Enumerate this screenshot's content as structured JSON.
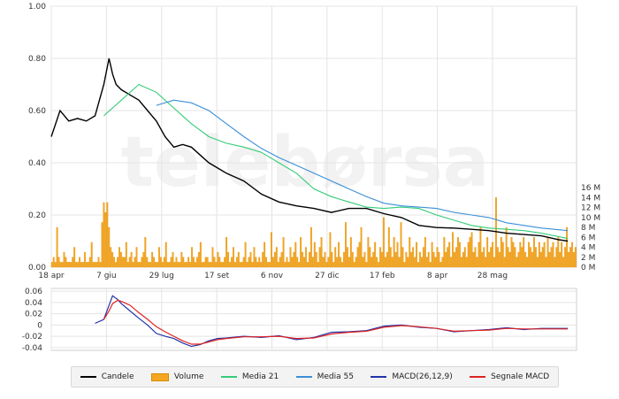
{
  "watermark": "telebørsa",
  "chart_data": [
    {
      "type": "line",
      "panel": "price",
      "x_ticks": [
        "18 apr",
        "7 giu",
        "29 lug",
        "17 set",
        "6 nov",
        "27 dic",
        "17 feb",
        "8 apr",
        "28 mag"
      ],
      "y_ticks": [
        "0.00",
        "0.20",
        "0.40",
        "0.60",
        "0.80",
        "1.00"
      ],
      "ylim": [
        0,
        1.0
      ],
      "y2_ticks": [
        "0 M",
        "2 M",
        "4 M",
        "6 M",
        "8 M",
        "10 M",
        "12 M",
        "14 M",
        "16 M"
      ],
      "y2lim": [
        0,
        16
      ],
      "grid": true,
      "series": [
        {
          "name": "Candele",
          "color": "#000000",
          "kind": "close",
          "x": [
            0,
            5,
            10,
            15,
            20,
            25,
            30,
            33,
            35,
            37,
            40,
            45,
            50,
            55,
            60,
            65,
            70,
            75,
            80,
            85,
            90,
            95,
            100,
            110,
            120,
            130,
            140,
            150,
            160,
            170,
            180,
            190,
            200,
            210,
            220,
            230,
            240,
            250,
            260,
            270,
            280,
            290,
            295
          ],
          "values": [
            0.5,
            0.6,
            0.56,
            0.57,
            0.56,
            0.58,
            0.7,
            0.8,
            0.74,
            0.7,
            0.68,
            0.66,
            0.64,
            0.6,
            0.56,
            0.5,
            0.46,
            0.47,
            0.46,
            0.43,
            0.4,
            0.38,
            0.36,
            0.33,
            0.28,
            0.25,
            0.235,
            0.225,
            0.21,
            0.225,
            0.225,
            0.205,
            0.19,
            0.16,
            0.152,
            0.15,
            0.145,
            0.14,
            0.13,
            0.125,
            0.12,
            0.105,
            0.1
          ]
        },
        {
          "name": "Media 21",
          "color": "#33cc77",
          "x": [
            30,
            40,
            50,
            60,
            70,
            80,
            90,
            100,
            110,
            120,
            130,
            140,
            150,
            160,
            170,
            180,
            190,
            200,
            210,
            220,
            230,
            240,
            250,
            260,
            270,
            280,
            295
          ],
          "values": [
            0.58,
            0.64,
            0.7,
            0.67,
            0.61,
            0.55,
            0.5,
            0.475,
            0.46,
            0.44,
            0.4,
            0.36,
            0.3,
            0.27,
            0.25,
            0.23,
            0.225,
            0.23,
            0.225,
            0.2,
            0.18,
            0.16,
            0.15,
            0.145,
            0.14,
            0.13,
            0.11
          ]
        },
        {
          "name": "Media 55",
          "color": "#3a8fd8",
          "x": [
            60,
            70,
            80,
            90,
            100,
            110,
            120,
            130,
            140,
            150,
            160,
            170,
            180,
            190,
            200,
            210,
            220,
            230,
            240,
            250,
            260,
            270,
            280,
            295
          ],
          "values": [
            0.62,
            0.64,
            0.63,
            0.6,
            0.55,
            0.5,
            0.455,
            0.42,
            0.39,
            0.36,
            0.33,
            0.3,
            0.27,
            0.245,
            0.235,
            0.23,
            0.225,
            0.21,
            0.2,
            0.19,
            0.17,
            0.16,
            0.15,
            0.14
          ]
        }
      ]
    },
    {
      "type": "bar",
      "panel": "volume",
      "series_name": "Volume",
      "units": "M",
      "color": "#f5a623",
      "values": [
        1,
        2,
        1,
        8,
        2,
        1,
        1,
        3,
        2,
        1,
        1,
        1,
        2,
        4,
        1,
        1,
        2,
        1,
        1,
        3,
        1,
        1,
        2,
        5,
        1,
        1,
        1,
        2,
        1,
        9,
        13,
        11,
        13,
        8,
        4,
        3,
        2,
        1,
        2,
        4,
        3,
        2,
        2,
        5,
        1,
        2,
        3,
        1,
        2,
        4,
        1,
        1,
        2,
        3,
        6,
        2,
        1,
        1,
        3,
        2,
        1,
        1,
        4,
        2,
        1,
        2,
        5,
        1,
        1,
        2,
        3,
        1,
        2,
        1,
        1,
        3,
        2,
        1,
        1,
        2,
        1,
        4,
        2,
        1,
        2,
        3,
        5,
        1,
        1,
        2,
        2,
        1,
        1,
        4,
        2,
        1,
        3,
        2,
        1,
        1,
        2,
        6,
        3,
        1,
        2,
        4,
        1,
        2,
        3,
        1,
        1,
        2,
        5,
        1,
        2,
        3,
        1,
        4,
        2,
        1,
        2,
        1,
        3,
        5,
        2,
        1,
        1,
        7,
        2,
        3,
        4,
        1,
        2,
        3,
        6,
        1,
        2,
        1,
        4,
        2,
        3,
        5,
        2,
        1,
        6,
        3,
        2,
        4,
        1,
        3,
        8,
        2,
        5,
        3,
        1,
        4,
        6,
        2,
        3,
        1,
        2,
        7,
        3,
        1,
        4,
        2,
        5,
        2,
        1,
        3,
        9,
        4,
        2,
        6,
        3,
        1,
        2,
        4,
        5,
        8,
        2,
        3,
        1,
        6,
        4,
        2,
        3,
        5,
        2,
        1,
        4,
        3,
        10,
        2,
        3,
        8,
        4,
        2,
        6,
        3,
        5,
        2,
        9,
        4,
        1,
        3,
        2,
        6,
        3,
        4,
        2,
        5,
        1,
        3,
        2,
        4,
        6,
        2,
        3,
        1,
        5,
        3,
        2,
        4,
        3,
        1,
        2,
        6,
        3,
        4,
        5,
        2,
        7,
        3,
        4,
        6,
        5,
        2,
        3,
        4,
        2,
        5,
        6,
        7,
        3,
        4,
        2,
        5,
        8,
        3,
        4,
        2,
        6,
        3,
        4,
        5,
        2,
        14,
        4,
        3,
        6,
        5,
        2,
        8,
        4,
        3,
        6,
        5,
        4,
        2,
        3,
        5,
        4,
        6,
        3,
        2,
        5,
        4,
        3,
        6,
        4,
        2,
        5,
        3,
        4,
        5,
        2,
        6,
        3,
        4,
        5,
        2,
        4,
        6,
        3,
        5,
        2,
        4,
        8,
        3,
        4,
        5,
        3,
        4
      ]
    },
    {
      "type": "line",
      "panel": "macd",
      "y_ticks": [
        "0.06",
        "0.04",
        "0.02",
        "0",
        "-0.02",
        "-0.04"
      ],
      "ylim": [
        -0.045,
        0.065
      ],
      "grid": true,
      "series": [
        {
          "name": "MACD(26,12,9)",
          "color": "#2233aa",
          "x": [
            25,
            30,
            33,
            35,
            38,
            40,
            45,
            50,
            55,
            60,
            65,
            70,
            75,
            80,
            85,
            90,
            95,
            100,
            110,
            120,
            130,
            140,
            150,
            160,
            170,
            180,
            190,
            200,
            210,
            220,
            230,
            240,
            250,
            260,
            270,
            280,
            295
          ],
          "values": [
            0.003,
            0.01,
            0.035,
            0.052,
            0.045,
            0.038,
            0.025,
            0.012,
            0.0,
            -0.015,
            -0.02,
            -0.024,
            -0.032,
            -0.038,
            -0.035,
            -0.028,
            -0.024,
            -0.023,
            -0.02,
            -0.022,
            -0.019,
            -0.026,
            -0.022,
            -0.013,
            -0.012,
            -0.01,
            -0.002,
            0.0,
            -0.004,
            -0.006,
            -0.012,
            -0.01,
            -0.008,
            -0.005,
            -0.008,
            -0.006,
            -0.006
          ]
        },
        {
          "name": "Segnale MACD",
          "color": "#dd2222",
          "x": [
            30,
            33,
            35,
            38,
            40,
            45,
            50,
            55,
            60,
            65,
            70,
            75,
            80,
            85,
            90,
            95,
            100,
            110,
            120,
            130,
            140,
            150,
            160,
            170,
            180,
            190,
            200,
            210,
            220,
            230,
            240,
            250,
            260,
            270,
            280,
            295
          ],
          "values": [
            0.01,
            0.025,
            0.038,
            0.044,
            0.042,
            0.035,
            0.022,
            0.01,
            -0.003,
            -0.012,
            -0.02,
            -0.028,
            -0.034,
            -0.034,
            -0.03,
            -0.026,
            -0.024,
            -0.021,
            -0.021,
            -0.02,
            -0.024,
            -0.023,
            -0.016,
            -0.013,
            -0.011,
            -0.004,
            -0.001,
            -0.003,
            -0.006,
            -0.011,
            -0.01,
            -0.009,
            -0.006,
            -0.007,
            -0.007,
            -0.007
          ]
        }
      ]
    }
  ],
  "legend": {
    "items": [
      {
        "label": "Candele",
        "color": "#000000",
        "kind": "line"
      },
      {
        "label": "Volume",
        "color": "#f5a623",
        "kind": "bar"
      },
      {
        "label": "Media 21",
        "color": "#33cc77",
        "kind": "line"
      },
      {
        "label": "Media 55",
        "color": "#3a8fd8",
        "kind": "line"
      },
      {
        "label": "MACD(26,12,9)",
        "color": "#2233aa",
        "kind": "line"
      },
      {
        "label": "Segnale MACD",
        "color": "#dd2222",
        "kind": "line"
      }
    ]
  }
}
